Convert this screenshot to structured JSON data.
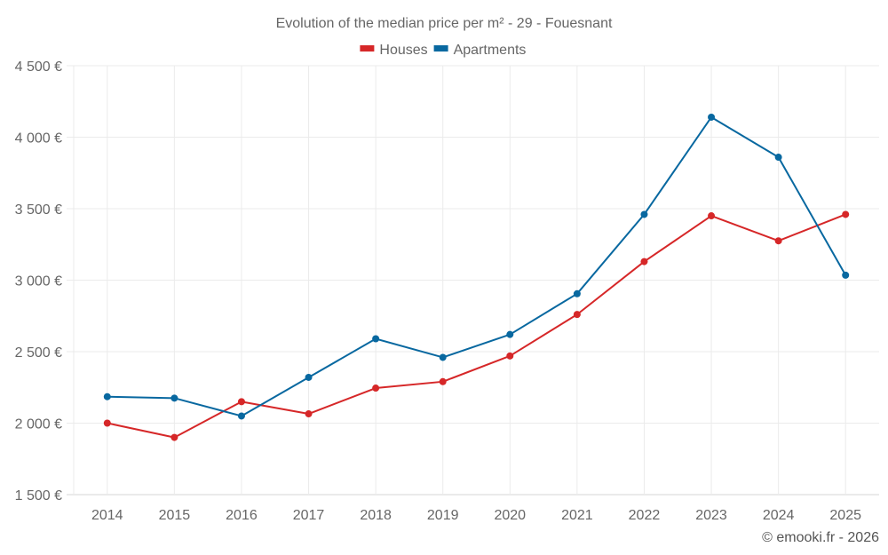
{
  "chart_data": {
    "type": "line",
    "title": "Evolution of the median price per m² - 29 - Fouesnant",
    "xlabel": "",
    "ylabel": "",
    "x": [
      "2014",
      "2015",
      "2016",
      "2017",
      "2018",
      "2019",
      "2020",
      "2021",
      "2022",
      "2023",
      "2024",
      "2025"
    ],
    "ylim": [
      1500,
      4500
    ],
    "yticks": [
      1500,
      2000,
      2500,
      3000,
      3500,
      4000,
      4500
    ],
    "ytick_labels": [
      "1 500 €",
      "2 000 €",
      "2 500 €",
      "3 000 €",
      "3 500 €",
      "4 000 €",
      "4 500 €"
    ],
    "grid": true,
    "legend_position": "top-center",
    "series": [
      {
        "name": "Houses",
        "color": "#d62728",
        "values": [
          2000,
          1900,
          2150,
          2065,
          2245,
          2290,
          2470,
          2760,
          3130,
          3450,
          3275,
          3460
        ]
      },
      {
        "name": "Apartments",
        "color": "#0868a0",
        "values": [
          2185,
          2175,
          2050,
          2320,
          2590,
          2460,
          2620,
          2905,
          3460,
          4140,
          3860,
          3035
        ]
      }
    ],
    "credit": "© emooki.fr - 2026"
  }
}
